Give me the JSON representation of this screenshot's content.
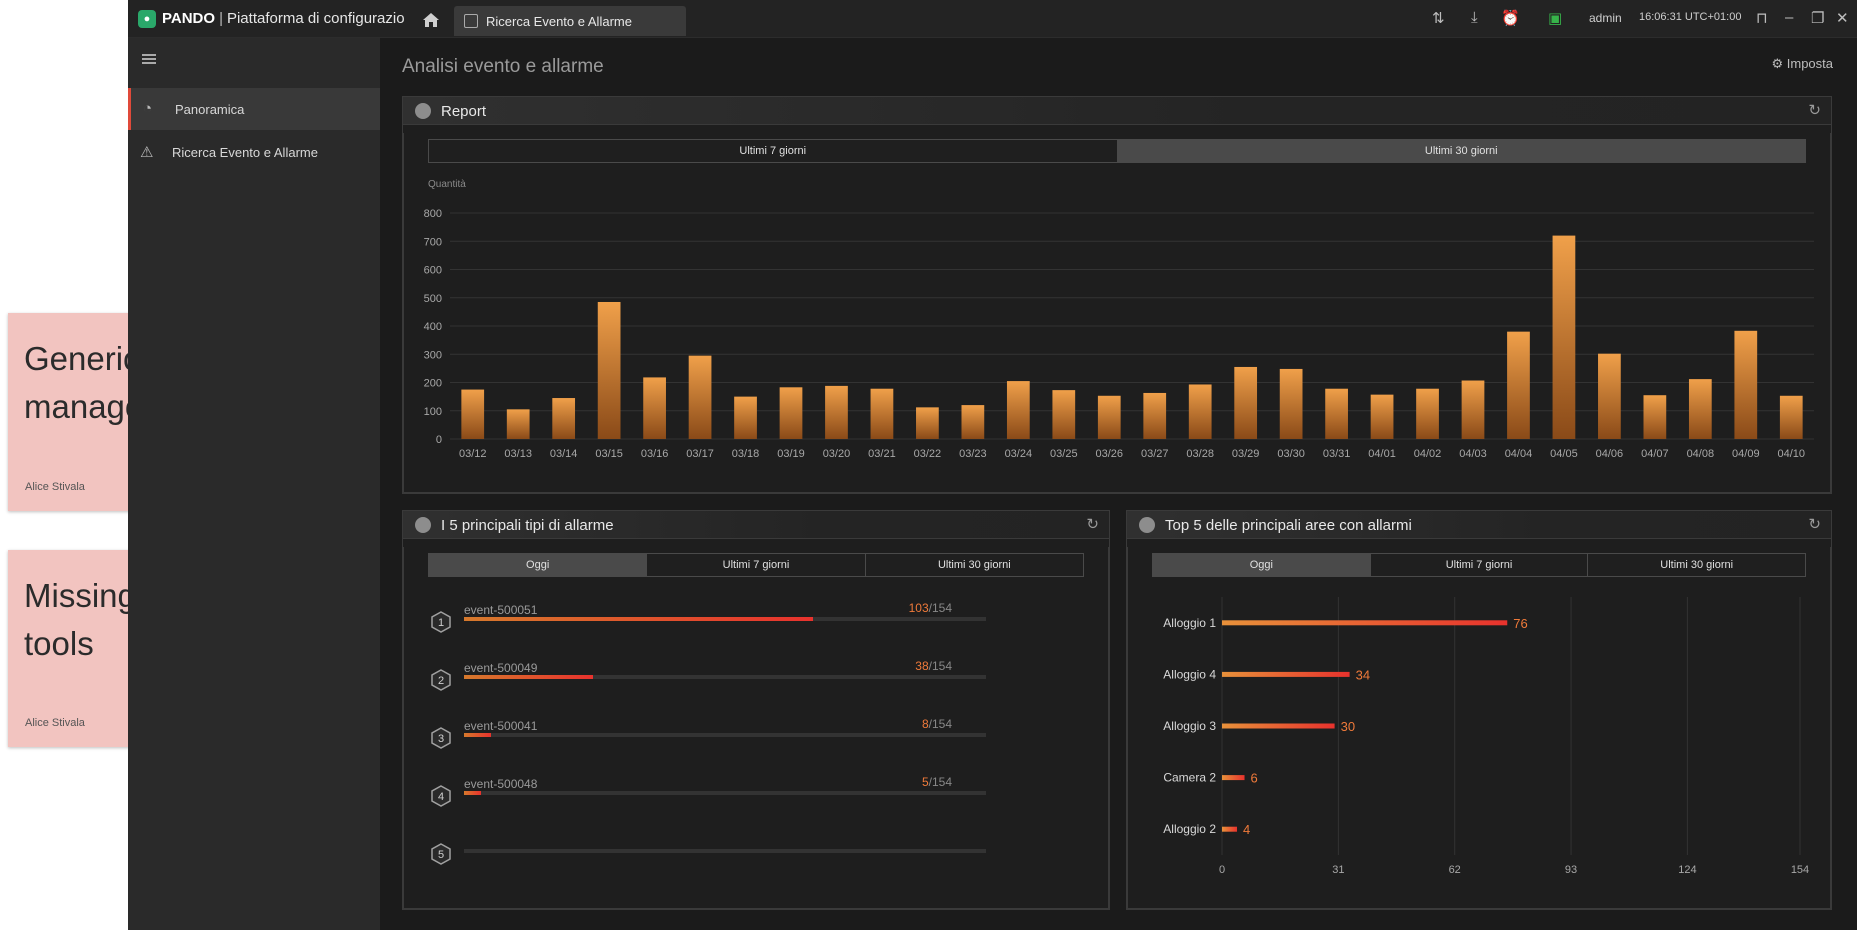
{
  "titlebar": {
    "brand": "PANDO",
    "product": "Piattaforma di configurazio",
    "active_tab": "Ricerca Evento e Allarme",
    "user": "admin",
    "clock": "16:06:31 UTC+01:00"
  },
  "sidebar": {
    "items": [
      {
        "label": "Panoramica",
        "icon": "gauge-icon"
      },
      {
        "label": "Ricerca Evento e Allarme",
        "icon": "alarm-icon"
      }
    ]
  },
  "main": {
    "title": "Analisi evento e allarme",
    "settings_label": "Imposta"
  },
  "report": {
    "title": "Report",
    "tabs": [
      "Ultimi 7 giorni",
      "Ultimi 30 giorni"
    ],
    "selected_tab": 1
  },
  "top_types": {
    "title": "I 5 principali tipi di allarme",
    "tabs": [
      "Oggi",
      "Ultimi 7 giorni",
      "Ultimi 30 giorni"
    ],
    "selected_tab": 0,
    "rows": [
      {
        "rank": "1",
        "name": "event-500051",
        "count": "103",
        "total": "/154",
        "value": 103
      },
      {
        "rank": "2",
        "name": "event-500049",
        "count": "38",
        "total": "/154",
        "value": 38
      },
      {
        "rank": "3",
        "name": "event-500041",
        "count": "8",
        "total": "/154",
        "value": 8
      },
      {
        "rank": "4",
        "name": "event-500048",
        "count": "5",
        "total": "/154",
        "value": 5
      },
      {
        "rank": "5",
        "name": "",
        "count": "",
        "total": "",
        "value": 0
      }
    ],
    "max": 154
  },
  "top_areas": {
    "title": "Top 5 delle principali aree con allarmi",
    "tabs": [
      "Oggi",
      "Ultimi 7 giorni",
      "Ultimi 30 giorni"
    ],
    "selected_tab": 0
  },
  "notes": [
    {
      "text": "Generic alert management",
      "author": "Alice Stivala"
    },
    {
      "text": "Missing analytics tools",
      "author": "Alice Stivala"
    }
  ],
  "chart_data": [
    {
      "type": "bar",
      "ylabel": "Quantità",
      "ylim": [
        0,
        800
      ],
      "yticks": [
        0,
        100,
        200,
        300,
        400,
        500,
        600,
        700,
        800
      ],
      "grid": true,
      "categories": [
        "03/12",
        "03/13",
        "03/14",
        "03/15",
        "03/16",
        "03/17",
        "03/18",
        "03/19",
        "03/20",
        "03/21",
        "03/22",
        "03/23",
        "03/24",
        "03/25",
        "03/26",
        "03/27",
        "03/28",
        "03/29",
        "03/30",
        "03/31",
        "04/01",
        "04/02",
        "04/03",
        "04/04",
        "04/05",
        "04/06",
        "04/07",
        "04/08",
        "04/09",
        "04/10"
      ],
      "values": [
        175,
        105,
        145,
        485,
        218,
        295,
        150,
        183,
        188,
        178,
        112,
        120,
        205,
        173,
        153,
        163,
        193,
        255,
        248,
        178,
        157,
        178,
        207,
        380,
        720,
        302,
        155,
        212,
        383,
        153
      ],
      "color": "#e8913a"
    },
    {
      "type": "bar",
      "orientation": "horizontal",
      "categories": [
        "Alloggio 1",
        "Alloggio 4",
        "Alloggio 3",
        "Camera 2",
        "Alloggio 2"
      ],
      "values": [
        76,
        34,
        30,
        6,
        4
      ],
      "xlim": [
        0,
        154
      ],
      "xticks": [
        0,
        31,
        62,
        93,
        124,
        154
      ],
      "grid": true,
      "color": "#e8322d"
    }
  ]
}
